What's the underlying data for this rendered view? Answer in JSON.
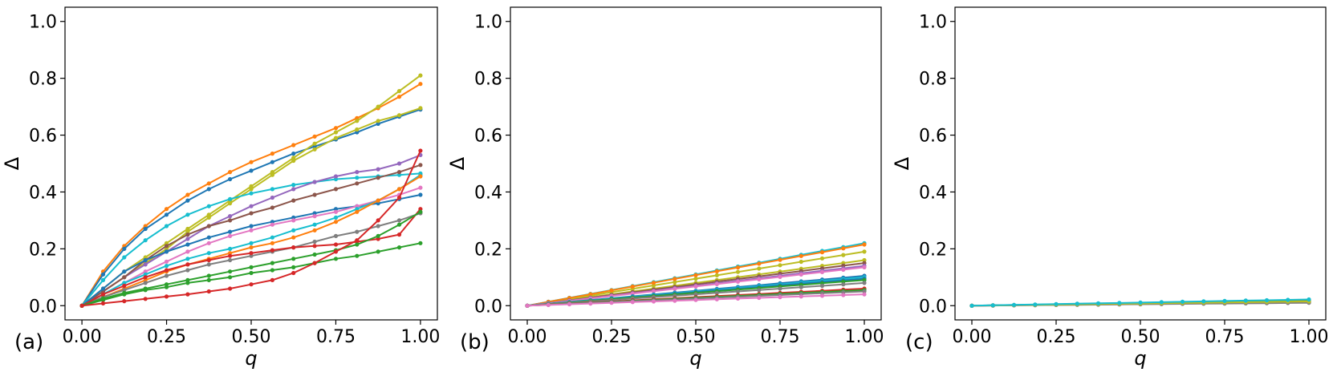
{
  "chart_data": [
    {
      "type": "line",
      "panel_label": "(a)",
      "xlabel": "q",
      "ylabel": "Δ",
      "xlim": [
        -0.05,
        1.05
      ],
      "ylim": [
        -0.05,
        1.05
      ],
      "xticks": [
        "0.00",
        "0.25",
        "0.50",
        "0.75",
        "1.00"
      ],
      "yticks": [
        "0.0",
        "0.2",
        "0.4",
        "0.6",
        "0.8",
        "1.0"
      ],
      "grid": false,
      "x": [
        0,
        0.0625,
        0.125,
        0.1875,
        0.25,
        0.3125,
        0.375,
        0.4375,
        0.5,
        0.5625,
        0.625,
        0.6875,
        0.75,
        0.8125,
        0.875,
        0.9375,
        1.0
      ],
      "series": [
        {
          "color": "#ff7f0e",
          "values": [
            0,
            0.12,
            0.21,
            0.28,
            0.34,
            0.39,
            0.43,
            0.47,
            0.505,
            0.535,
            0.565,
            0.595,
            0.625,
            0.66,
            0.695,
            0.735,
            0.78
          ]
        },
        {
          "color": "#1f77b4",
          "values": [
            0,
            0.11,
            0.2,
            0.27,
            0.32,
            0.37,
            0.41,
            0.445,
            0.475,
            0.505,
            0.535,
            0.56,
            0.585,
            0.61,
            0.64,
            0.665,
            0.69
          ]
        },
        {
          "color": "#bcbd22",
          "values": [
            0,
            0.06,
            0.12,
            0.17,
            0.22,
            0.27,
            0.32,
            0.37,
            0.42,
            0.47,
            0.52,
            0.57,
            0.61,
            0.65,
            0.7,
            0.755,
            0.81
          ]
        },
        {
          "color": "#bcbd22",
          "values": [
            0,
            0.05,
            0.1,
            0.15,
            0.2,
            0.26,
            0.31,
            0.36,
            0.41,
            0.46,
            0.51,
            0.55,
            0.59,
            0.62,
            0.65,
            0.67,
            0.695
          ]
        },
        {
          "color": "#17becf",
          "values": [
            0,
            0.09,
            0.17,
            0.23,
            0.28,
            0.32,
            0.35,
            0.375,
            0.395,
            0.41,
            0.425,
            0.435,
            0.445,
            0.45,
            0.455,
            0.46,
            0.465
          ]
        },
        {
          "color": "#9467bd",
          "values": [
            0,
            0.05,
            0.1,
            0.145,
            0.19,
            0.235,
            0.28,
            0.315,
            0.35,
            0.38,
            0.41,
            0.435,
            0.455,
            0.47,
            0.48,
            0.5,
            0.53
          ]
        },
        {
          "color": "#8c564b",
          "values": [
            0,
            0.05,
            0.1,
            0.16,
            0.21,
            0.25,
            0.28,
            0.3,
            0.325,
            0.345,
            0.37,
            0.39,
            0.41,
            0.43,
            0.45,
            0.47,
            0.495
          ]
        },
        {
          "color": "#1f77b4",
          "values": [
            0,
            0.06,
            0.12,
            0.16,
            0.19,
            0.215,
            0.24,
            0.26,
            0.28,
            0.295,
            0.31,
            0.325,
            0.34,
            0.35,
            0.36,
            0.375,
            0.39
          ]
        },
        {
          "color": "#e377c2",
          "values": [
            0,
            0.04,
            0.08,
            0.12,
            0.155,
            0.19,
            0.22,
            0.245,
            0.265,
            0.285,
            0.3,
            0.315,
            0.33,
            0.35,
            0.37,
            0.39,
            0.415
          ]
        },
        {
          "color": "#17becf",
          "values": [
            0,
            0.04,
            0.08,
            0.11,
            0.14,
            0.165,
            0.185,
            0.2,
            0.22,
            0.24,
            0.265,
            0.285,
            0.31,
            0.34,
            0.37,
            0.41,
            0.46
          ]
        },
        {
          "color": "#ff7f0e",
          "values": [
            0,
            0.03,
            0.06,
            0.09,
            0.12,
            0.145,
            0.165,
            0.185,
            0.205,
            0.22,
            0.24,
            0.265,
            0.295,
            0.33,
            0.37,
            0.41,
            0.455
          ]
        },
        {
          "color": "#7f7f7f",
          "values": [
            0,
            0.03,
            0.055,
            0.08,
            0.105,
            0.125,
            0.145,
            0.16,
            0.175,
            0.19,
            0.205,
            0.225,
            0.245,
            0.26,
            0.28,
            0.3,
            0.325
          ]
        },
        {
          "color": "#d62728",
          "values": [
            0,
            0.04,
            0.07,
            0.1,
            0.125,
            0.145,
            0.16,
            0.175,
            0.185,
            0.195,
            0.205,
            0.21,
            0.215,
            0.225,
            0.235,
            0.25,
            0.34
          ]
        },
        {
          "color": "#2ca02c",
          "values": [
            0,
            0.025,
            0.045,
            0.06,
            0.075,
            0.09,
            0.105,
            0.12,
            0.135,
            0.15,
            0.165,
            0.18,
            0.195,
            0.215,
            0.245,
            0.285,
            0.33
          ]
        },
        {
          "color": "#2ca02c",
          "values": [
            0,
            0.02,
            0.04,
            0.055,
            0.065,
            0.08,
            0.09,
            0.1,
            0.115,
            0.125,
            0.135,
            0.15,
            0.165,
            0.175,
            0.19,
            0.205,
            0.22
          ]
        },
        {
          "color": "#d62728",
          "values": [
            0,
            0.008,
            0.016,
            0.024,
            0.032,
            0.04,
            0.05,
            0.06,
            0.075,
            0.09,
            0.115,
            0.15,
            0.19,
            0.23,
            0.3,
            0.38,
            0.545
          ]
        }
      ]
    },
    {
      "type": "line",
      "panel_label": "(b)",
      "xlabel": "q",
      "ylabel": "Δ",
      "xlim": [
        -0.05,
        1.05
      ],
      "ylim": [
        -0.05,
        1.05
      ],
      "xticks": [
        "0.00",
        "0.25",
        "0.50",
        "0.75",
        "1.00"
      ],
      "yticks": [
        "0.0",
        "0.2",
        "0.4",
        "0.6",
        "0.8",
        "1.0"
      ],
      "grid": false,
      "x": [
        0,
        0.0625,
        0.125,
        0.1875,
        0.25,
        0.3125,
        0.375,
        0.4375,
        0.5,
        0.5625,
        0.625,
        0.6875,
        0.75,
        0.8125,
        0.875,
        0.9375,
        1.0
      ],
      "series": [
        {
          "color": "#17becf",
          "finals": 0.22
        },
        {
          "color": "#bcbd22",
          "finals": 0.19
        },
        {
          "color": "#ff7f0e",
          "finals": 0.215
        },
        {
          "color": "#bcbd22",
          "finals": 0.16
        },
        {
          "color": "#8c564b",
          "finals": 0.15
        },
        {
          "color": "#9467bd",
          "finals": 0.14
        },
        {
          "color": "#e377c2",
          "finals": 0.135
        },
        {
          "color": "#1f77b4",
          "finals": 0.105
        },
        {
          "color": "#17becf",
          "finals": 0.1
        },
        {
          "color": "#1f77b4",
          "finals": 0.095
        },
        {
          "color": "#2ca02c",
          "finals": 0.09
        },
        {
          "color": "#7f7f7f",
          "finals": 0.08
        },
        {
          "color": "#d62728",
          "finals": 0.06
        },
        {
          "color": "#2ca02c",
          "finals": 0.055
        },
        {
          "color": "#7f7f7f",
          "finals": 0.05
        },
        {
          "color": "#e377c2",
          "finals": 0.04
        }
      ]
    },
    {
      "type": "line",
      "panel_label": "(c)",
      "xlabel": "q",
      "ylabel": "Δ",
      "xlim": [
        -0.05,
        1.05
      ],
      "ylim": [
        -0.05,
        1.05
      ],
      "xticks": [
        "0.00",
        "0.25",
        "0.50",
        "0.75",
        "1.00"
      ],
      "yticks": [
        "0.0",
        "0.2",
        "0.4",
        "0.6",
        "0.8",
        "1.0"
      ],
      "grid": false,
      "x": [
        0,
        0.0625,
        0.125,
        0.1875,
        0.25,
        0.3125,
        0.375,
        0.4375,
        0.5,
        0.5625,
        0.625,
        0.6875,
        0.75,
        0.8125,
        0.875,
        0.9375,
        1.0
      ],
      "series": [
        {
          "color": "#1f77b4",
          "finals": 0.02
        },
        {
          "color": "#ff7f0e",
          "finals": 0.018
        },
        {
          "color": "#2ca02c",
          "finals": 0.016
        },
        {
          "color": "#d62728",
          "finals": 0.014
        },
        {
          "color": "#9467bd",
          "finals": 0.013
        },
        {
          "color": "#8c564b",
          "finals": 0.012
        },
        {
          "color": "#e377c2",
          "finals": 0.011
        },
        {
          "color": "#7f7f7f",
          "finals": 0.01
        },
        {
          "color": "#bcbd22",
          "finals": 0.015
        },
        {
          "color": "#17becf",
          "finals": 0.022
        }
      ]
    }
  ]
}
